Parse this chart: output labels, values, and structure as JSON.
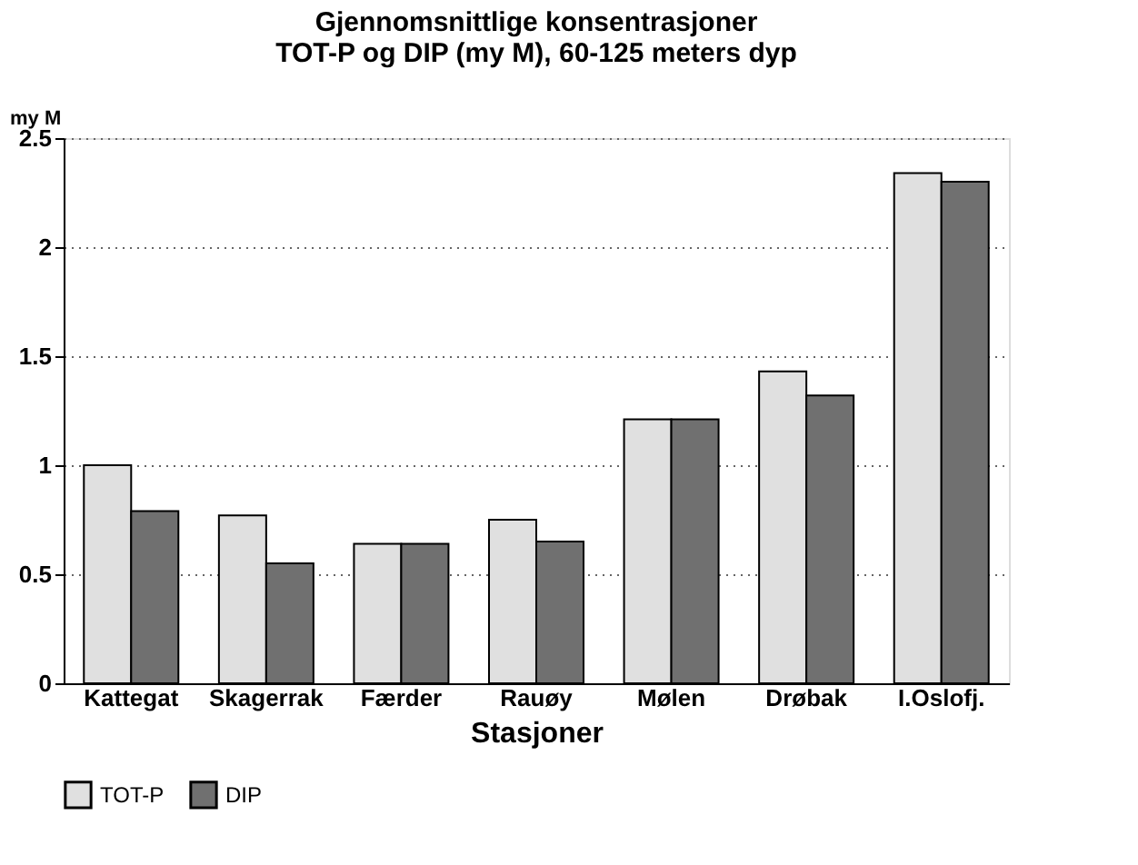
{
  "chart_data": {
    "type": "bar",
    "title": [
      "Gjennomsnittlige konsentrasjoner",
      "TOT-P og DIP (my M), 60-125 meters dyp"
    ],
    "xlabel": "Stasjoner",
    "ylabel": "my M",
    "categories": [
      "Kattegat",
      "Skagerrak",
      "Færder",
      "Rauøy",
      "Mølen",
      "Drøbak",
      "I.Oslofj."
    ],
    "series": [
      {
        "name": "TOT-P",
        "color": "#e0e0e0",
        "values": [
          1.0,
          0.77,
          0.64,
          0.75,
          1.21,
          1.43,
          2.34
        ]
      },
      {
        "name": "DIP",
        "color": "#707070",
        "values": [
          0.79,
          0.55,
          0.64,
          0.65,
          1.21,
          1.32,
          2.3
        ]
      }
    ],
    "ylim": [
      0,
      2.5
    ],
    "yticks": [
      0,
      0.5,
      1,
      1.5,
      2,
      2.5
    ],
    "grid": "y",
    "legend": "bottom"
  }
}
